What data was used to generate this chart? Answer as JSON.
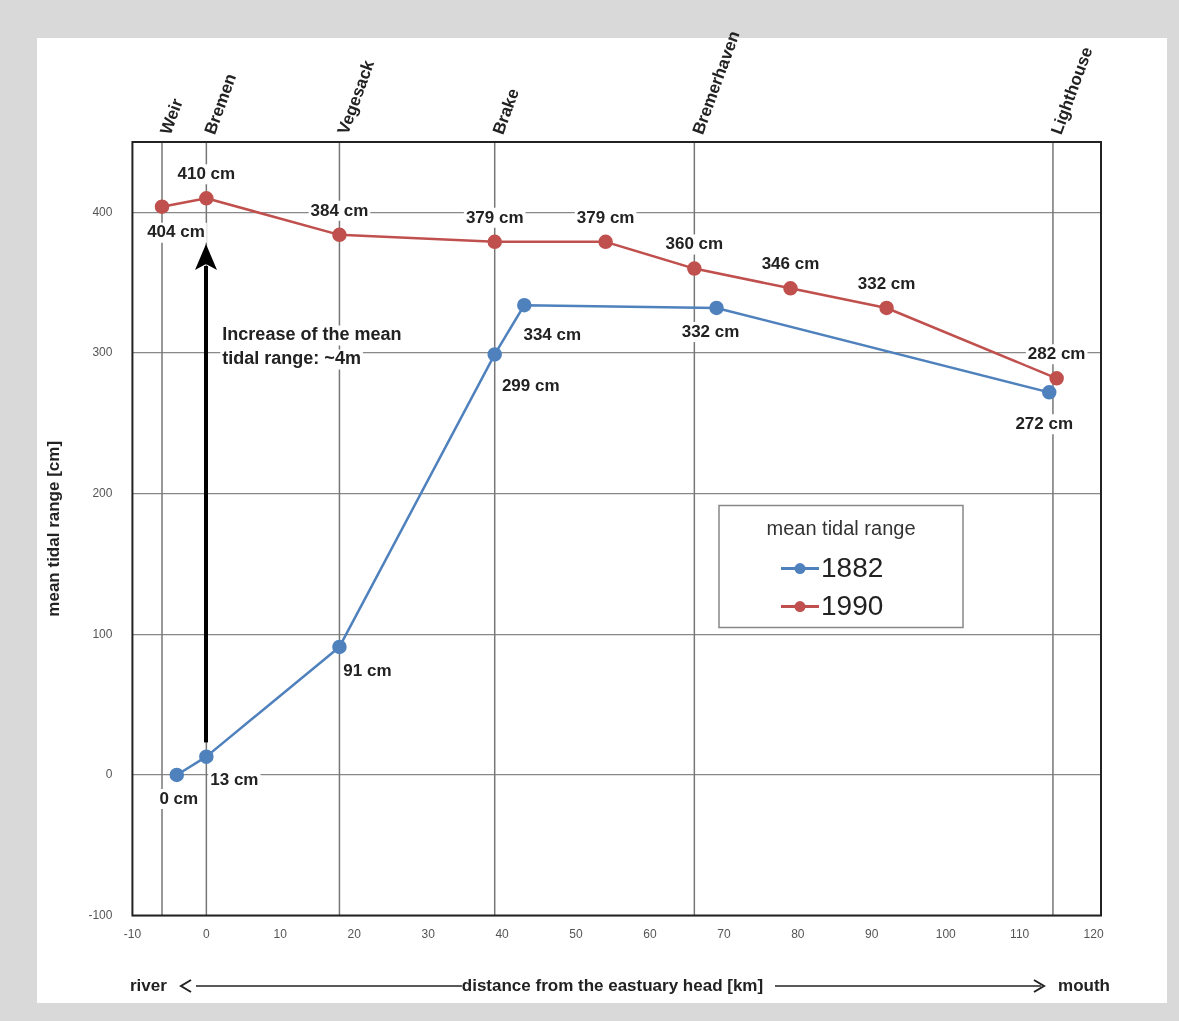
{
  "chart_data": {
    "type": "line",
    "xlabel": "distance from the eastuary head [km]",
    "ylabel": "mean tidal range [cm]",
    "legend_title": "mean tidal range",
    "legend": "right",
    "marker": "circle",
    "grid": "y",
    "xlim": [
      -10,
      121
    ],
    "xticks": [
      -10,
      0,
      10,
      20,
      30,
      40,
      50,
      60,
      70,
      80,
      90,
      100,
      110,
      120
    ],
    "ref_lines": [
      {
        "axis": "x",
        "value": -6,
        "label": "Weir"
      },
      {
        "axis": "x",
        "value": 0,
        "label": "Bremen"
      },
      {
        "axis": "x",
        "value": 18,
        "label": "Vegesack"
      },
      {
        "axis": "x",
        "value": 39,
        "label": "Brake"
      },
      {
        "axis": "x",
        "value": 66,
        "label": "Bremerhaven"
      },
      {
        "axis": "x",
        "value": 114.5,
        "label": "Lighthouse"
      }
    ],
    "ylim": [
      -100,
      450
    ],
    "yticks": [
      -100,
      0,
      100,
      200,
      300,
      400
    ],
    "series": [
      {
        "name": "1882",
        "color": "#4f81bd",
        "x": [
          -4,
          0,
          18,
          39,
          43,
          69,
          114
        ],
        "values": [
          0,
          13,
          91,
          299,
          334,
          332,
          272
        ],
        "value_labels": [
          "0 cm",
          "13 cm",
          "91 cm",
          "299 cm",
          "334 cm",
          "332 cm",
          "272 cm"
        ]
      },
      {
        "name": "1990",
        "color": "#c0504d",
        "x": [
          -6,
          0,
          18,
          39,
          54,
          66,
          79,
          92,
          115
        ],
        "values": [
          404,
          410,
          384,
          379,
          379,
          360,
          346,
          332,
          282
        ],
        "value_labels": [
          "404 cm",
          "410 cm",
          "384 cm",
          "379 cm",
          "379 cm",
          "360 cm",
          "346 cm",
          "332 cm",
          "282 cm"
        ]
      }
    ],
    "annotations": [
      "Increase of the mean tidal range: ~4m",
      "river",
      "mouth"
    ]
  }
}
